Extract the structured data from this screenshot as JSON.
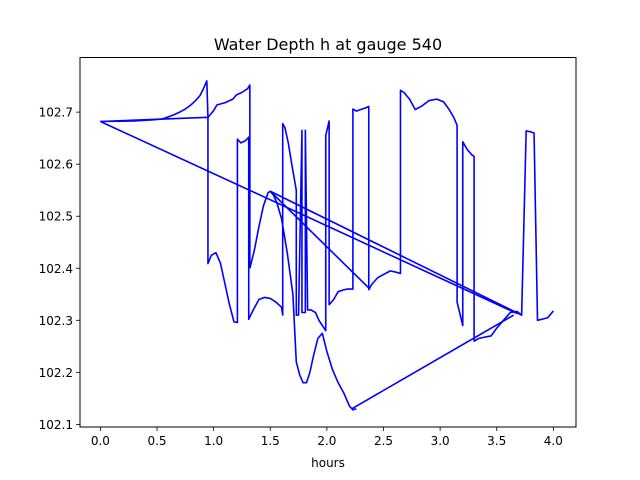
{
  "chart_data": {
    "type": "line",
    "title": "Water Depth h at gauge 540",
    "xlabel": "hours",
    "ylabel": "",
    "xlim": [
      -0.18,
      4.2
    ],
    "ylim": [
      102.095,
      102.805
    ],
    "xticks": [
      0.0,
      0.5,
      1.0,
      1.5,
      2.0,
      2.5,
      3.0,
      3.5,
      4.0
    ],
    "xtick_labels": [
      "0.0",
      "0.5",
      "1.0",
      "1.5",
      "2.0",
      "2.5",
      "3.0",
      "3.5",
      "4.0"
    ],
    "yticks": [
      102.1,
      102.2,
      102.3,
      102.4,
      102.5,
      102.6,
      102.7
    ],
    "ytick_labels": [
      "102.1",
      "102.2",
      "102.3",
      "102.4",
      "102.5",
      "102.6",
      "102.7"
    ],
    "grid": false,
    "series": [
      {
        "color": "#0000ff",
        "x": [
          0.0,
          0.5,
          0.55,
          0.6,
          0.65,
          0.7,
          0.75,
          0.8,
          0.85,
          0.9,
          0.94,
          0.94,
          0.97,
          1.0,
          1.03,
          1.07,
          1.1,
          1.14,
          1.18,
          1.21,
          1.21,
          1.25,
          1.3,
          1.32,
          1.32,
          1.36,
          1.4,
          1.44,
          1.48,
          1.5,
          1.52,
          1.55,
          1.58,
          1.61,
          1.61,
          1.63,
          1.66,
          1.68,
          1.7,
          1.73,
          1.73,
          1.77,
          1.77,
          1.8,
          1.8,
          1.85,
          1.88,
          1.91,
          1.93,
          1.96,
          1.99,
          1.99,
          2.03,
          2.03,
          2.06,
          2.1,
          2.15,
          2.2,
          2.24,
          2.24,
          2.3,
          2.34,
          2.36,
          2.38,
          2.38,
          2.43,
          2.5,
          2.55,
          2.6,
          2.63,
          2.63,
          2.68,
          2.73,
          2.78,
          2.83,
          2.88,
          2.93,
          2.98,
          3.03,
          3.08,
          3.12,
          3.15,
          3.15,
          3.19,
          3.21,
          3.21,
          3.24,
          3.28,
          3.31,
          3.31,
          3.34,
          3.38,
          3.42,
          3.42,
          3.5,
          3.55,
          3.6,
          3.65,
          3.7,
          3.74,
          3.74,
          3.8,
          3.83,
          3.83,
          3.87,
          3.92,
          3.96,
          4.0
        ]
      },
      {
        "color": "#0000ff",
        "x": [
          0.0,
          0.5,
          0.55,
          0.6,
          0.65,
          0.7,
          0.75,
          0.8,
          0.85,
          0.9,
          0.94,
          0.94
        ]
      }
    ],
    "segments": [
      {
        "x": [
          0.0,
          0.95
        ],
        "y": [
          102.682,
          102.69
        ]
      },
      {
        "x": [
          0.95,
          0.95,
          0.98,
          1.02,
          1.06,
          1.1,
          1.14,
          1.18,
          1.21,
          1.21,
          1.24,
          1.28,
          1.3,
          1.31,
          1.32,
          1.32,
          1.36,
          1.4,
          1.44,
          1.48,
          1.52,
          1.55,
          1.58,
          1.61,
          1.61
        ],
        "y": [
          102.69,
          102.409,
          102.425,
          102.43,
          102.41,
          102.37,
          102.33,
          102.3,
          102.296,
          102.648,
          102.641,
          102.645,
          102.657,
          102.657,
          102.302,
          102.301,
          102.32,
          102.34,
          102.345,
          102.343,
          102.338,
          102.33,
          102.315,
          102.305,
          102.677
        ]
      },
      {
        "x": [
          0.0,
          0.2,
          0.4,
          0.55,
          0.6,
          0.65,
          0.7,
          0.75,
          0.8,
          0.85,
          0.9,
          0.94,
          0.945,
          0.95
        ],
        "y": [
          102.682,
          102.682,
          102.684,
          102.686,
          102.689,
          102.694,
          102.698,
          102.704,
          102.712,
          102.722,
          102.737,
          102.758,
          102.76,
          102.69
        ]
      }
    ],
    "paths": [
      {
        "name": "main-trace",
        "x": [
          0.0,
          0.95,
          0.95,
          0.98,
          1.02,
          1.06,
          1.1,
          1.14,
          1.18,
          1.21,
          1.21,
          1.24,
          1.28,
          1.31,
          1.31,
          1.35,
          1.4,
          1.45,
          1.5,
          1.55,
          1.6,
          1.61,
          1.61,
          1.63,
          1.66,
          1.69,
          1.73,
          1.73,
          1.75,
          1.78,
          1.78,
          1.81,
          1.81,
          1.83,
          1.86,
          1.9,
          1.93,
          1.96,
          1.99,
          1.99,
          2.02,
          2.02,
          2.06,
          2.1,
          2.14,
          2.18,
          2.23,
          2.23,
          2.26,
          2.3,
          2.34,
          2.37,
          2.37,
          2.4,
          2.45,
          2.5,
          2.56,
          2.62,
          2.65,
          2.65,
          2.68,
          2.73,
          2.78,
          2.84,
          2.9,
          2.97,
          3.03,
          3.08,
          3.12,
          3.15,
          3.15,
          3.2,
          3.2,
          3.24,
          3.28,
          3.3,
          3.3,
          3.34,
          3.4,
          3.45,
          3.5,
          3.56,
          3.62,
          3.68,
          3.72,
          3.72,
          3.76,
          3.8,
          3.83,
          3.83,
          3.86,
          3.9,
          3.95,
          4.0
        ],
        "y": [
          102.682,
          102.69,
          102.409,
          102.425,
          102.43,
          102.41,
          102.37,
          102.33,
          102.297,
          102.296,
          102.648,
          102.641,
          102.645,
          102.652,
          102.302,
          102.32,
          102.34,
          102.344,
          102.342,
          102.335,
          102.325,
          102.31,
          102.678,
          102.67,
          102.64,
          102.6,
          102.55,
          102.31,
          102.31,
          102.665,
          102.315,
          102.315,
          102.665,
          102.32,
          102.32,
          102.315,
          102.3,
          102.29,
          102.28,
          102.655,
          102.683,
          102.33,
          102.34,
          102.355,
          102.358,
          102.36,
          102.36,
          102.706,
          102.702,
          102.705,
          102.708,
          102.711,
          102.359,
          102.37,
          102.382,
          102.388,
          102.395,
          102.392,
          102.39,
          102.742,
          102.738,
          102.725,
          102.705,
          102.712,
          102.722,
          102.725,
          102.72,
          102.705,
          102.69,
          102.675,
          102.335,
          102.29,
          102.643,
          102.628,
          102.618,
          102.615,
          102.26,
          102.265,
          102.268,
          102.27,
          102.285,
          102.3,
          102.315,
          102.317,
          102.31,
          102.31,
          102.664,
          102.662,
          102.66,
          102.655,
          102.3,
          102.302,
          102.305,
          102.318
        ]
      },
      {
        "name": "upper-left-rise",
        "x": [
          0.0,
          0.3,
          0.45,
          0.55,
          0.6,
          0.65,
          0.7,
          0.75,
          0.8,
          0.84,
          0.88,
          0.91,
          0.94,
          0.95
        ],
        "y": [
          102.682,
          102.683,
          102.685,
          102.687,
          102.691,
          102.695,
          102.7,
          102.706,
          102.714,
          102.722,
          102.732,
          102.745,
          102.76,
          102.69
        ]
      },
      {
        "name": "mid-jumps",
        "x": [
          0.95,
          1.0,
          1.03,
          1.1,
          1.17,
          1.2,
          1.25,
          1.3,
          1.32,
          1.32
        ],
        "y": [
          102.69,
          102.703,
          102.714,
          102.718,
          102.725,
          102.733,
          102.738,
          102.745,
          102.752,
          102.4
        ]
      }
    ],
    "cross_lines": [
      {
        "x": [
          0.0,
          3.68
        ],
        "y": [
          102.682,
          102.313
        ]
      },
      {
        "x": [
          1.5,
          2.38
        ],
        "y": [
          102.548,
          102.36
        ]
      },
      {
        "x": [
          1.5,
          3.72
        ],
        "y": [
          102.548,
          102.31
        ]
      },
      {
        "x": [
          2.22,
          3.65
        ],
        "y": [
          102.13,
          102.31
        ]
      }
    ],
    "dip_curve": {
      "x": [
        1.32,
        1.36,
        1.4,
        1.44,
        1.48,
        1.5,
        1.53,
        1.56,
        1.6,
        1.65,
        1.7,
        1.73,
        1.76,
        1.79,
        1.82,
        1.85,
        1.88,
        1.92,
        1.96,
        2.0,
        2.05,
        2.1,
        2.15,
        2.2,
        2.23,
        2.26
      ],
      "y": [
        102.4,
        102.435,
        102.48,
        102.52,
        102.545,
        102.548,
        102.54,
        102.525,
        102.495,
        102.43,
        102.35,
        102.22,
        102.195,
        102.18,
        102.18,
        102.2,
        102.23,
        102.265,
        102.275,
        102.24,
        102.205,
        102.18,
        102.16,
        102.135,
        102.128,
        102.13
      ]
    }
  }
}
